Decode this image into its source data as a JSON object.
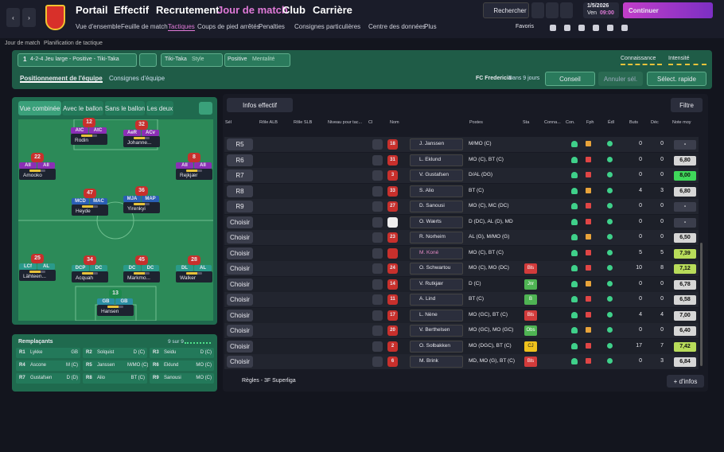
{
  "header": {
    "nav": [
      "Portail",
      "Effectif",
      "Recrutement",
      "Jour de match",
      "Club",
      "Carrière"
    ],
    "subnav": [
      "Vue d'ensemble",
      "Feuille de match",
      "Tactiques",
      "Coups de pied arrêtés",
      "Penalties",
      "Consignes particulières",
      "Centre des données",
      "Plus"
    ],
    "search": "Rechercher",
    "date": "1/5/2026",
    "day": "Ven",
    "time": "09:00",
    "continue": "Continuer",
    "favorites": "Favoris"
  },
  "breadcrumb": [
    "Jour de match",
    "Planification de tactique"
  ],
  "tactic": {
    "slot": "1",
    "formation": "4-2-4 Jeu large - Positive - Tiki-Taka",
    "style_value": "Tiki-Taka",
    "style_label": "Style",
    "mentality_value": "Positive",
    "mentality_label": "Mentalité",
    "familiarity": "Connaissance",
    "intensity": "Intensité",
    "tabs": [
      "Positionnement de l'équipe",
      "Consignes d'équipe"
    ],
    "opponent": "FC Fredericia",
    "when": "Dans 9 jours",
    "advice": "Conseil",
    "undo": "Annuler sél.",
    "quick": "Sélect. rapide"
  },
  "pitch": {
    "tabs": [
      "Vue combinée",
      "Avec le ballon",
      "Sans le ballon",
      "Les deux"
    ],
    "players": [
      {
        "number": 12,
        "roles": [
          "AtC",
          "AtC"
        ],
        "name": "Rodin"
      },
      {
        "number": 32,
        "roles": [
          "AeR",
          "ACv"
        ],
        "name": "Johanne..."
      },
      {
        "number": 22,
        "roles": [
          "AlI",
          "AlI"
        ],
        "name": "Amooko"
      },
      {
        "number": 8,
        "roles": [
          "AlI",
          "AlI"
        ],
        "name": "Rejkjær"
      },
      {
        "number": 47,
        "roles": [
          "MCD",
          "MAC"
        ],
        "name": "Heyde"
      },
      {
        "number": 36,
        "roles": [
          "MJA",
          "MAP"
        ],
        "name": "Yirenkyi"
      },
      {
        "number": 25,
        "roles": [
          "LCf",
          "AL"
        ],
        "name": "Lähteen..."
      },
      {
        "number": 34,
        "roles": [
          "DCP",
          "DC"
        ],
        "name": "Acquah"
      },
      {
        "number": 45,
        "roles": [
          "DC",
          "DC"
        ],
        "name": "Markmo..."
      },
      {
        "number": 28,
        "roles": [
          "DL",
          "AL"
        ],
        "name": "Walker"
      },
      {
        "number": 13,
        "roles": [
          "GB",
          "GB"
        ],
        "name": "Hansen"
      }
    ]
  },
  "subs": {
    "title": "Remplaçants",
    "count": "9 sur 9",
    "rows": [
      [
        "R1",
        "Lykke",
        "GB"
      ],
      [
        "R2",
        "Solquist",
        "D (C)"
      ],
      [
        "R3",
        "Seidu",
        "D (C)"
      ],
      [
        "R4",
        "Ascone",
        "M (C)"
      ],
      [
        "R5",
        "Janssen",
        "M/MO (C)"
      ],
      [
        "R6",
        "Eklund",
        "MO (C)"
      ],
      [
        "R7",
        "Gustafsen",
        "D (D)"
      ],
      [
        "R8",
        "Alio",
        "BT (C)"
      ],
      [
        "R9",
        "Sanousi",
        "MO (C)"
      ]
    ]
  },
  "table": {
    "squad_button": "Infos effectif",
    "filter": "Filtre",
    "columns": [
      "Sél",
      "Rôle ALB",
      "Rôle SLB",
      "Niveau pour tac...",
      "Cl",
      "Nom",
      "Postes",
      "Sta",
      "Conna...",
      "Con.",
      "Fph",
      "Édl",
      "Buts",
      "Déc",
      "Note moy"
    ],
    "rows": [
      {
        "sel": "R5",
        "shirt": 18,
        "name": "J. Janssen",
        "postes": "M/MO (C)",
        "buts": 0,
        "dec": 0,
        "note": "-"
      },
      {
        "sel": "R6",
        "shirt": 31,
        "name": "L. Eklund",
        "postes": "MO (C), BT (C)",
        "buts": 0,
        "dec": 0,
        "note": "6,80"
      },
      {
        "sel": "R7",
        "shirt": 3,
        "name": "V. Gustafsen",
        "postes": "D/AL (DG)",
        "buts": 0,
        "dec": 0,
        "note": "8,00"
      },
      {
        "sel": "R8",
        "shirt": 33,
        "name": "S. Alio",
        "postes": "BT (C)",
        "buts": 4,
        "dec": 3,
        "note": "6,80"
      },
      {
        "sel": "R9",
        "shirt": 27,
        "name": "D. Sanousi",
        "postes": "MO (C), MC (DC)",
        "buts": 0,
        "dec": 0,
        "note": "-"
      },
      {
        "sel": "Choisir",
        "name": "O. Wærts",
        "postes": "D (DC), AL (D), MD",
        "buts": 0,
        "dec": 0,
        "note": "-"
      },
      {
        "sel": "Choisir",
        "shirt": 23,
        "name": "R. Norheim",
        "postes": "AL (G), M/MO (G)",
        "buts": 0,
        "dec": 0,
        "note": "6,50"
      },
      {
        "sel": "Choisir",
        "name": "M. Koné",
        "name_color": "#e48bc4",
        "postes": "MO (C), BT (C)",
        "buts": 5,
        "dec": 5,
        "note": "7,39"
      },
      {
        "sel": "Choisir",
        "shirt": 24,
        "name": "O. Schwartou",
        "postes": "MO (C), MO (DC)",
        "sta": {
          "label": "Bls",
          "color": "#d23b3b"
        },
        "buts": 10,
        "dec": 8,
        "note": "7,12"
      },
      {
        "sel": "Choisir",
        "shirt": 14,
        "name": "V. Rutkjær",
        "postes": "D (C)",
        "sta": {
          "label": "Jnr",
          "color": "#4fb453"
        },
        "buts": 0,
        "dec": 0,
        "note": "6,78"
      },
      {
        "sel": "Choisir",
        "shirt": 11,
        "name": "A. Lind",
        "postes": "BT (C)",
        "sta": {
          "label": "B",
          "color": "#4fb453"
        },
        "buts": 0,
        "dec": 0,
        "note": "6,58"
      },
      {
        "sel": "Choisir",
        "shirt": 17,
        "name": "L. Nène",
        "postes": "MO (GC), BT (C)",
        "sta": {
          "label": "Bls",
          "color": "#d23b3b"
        },
        "buts": 4,
        "dec": 4,
        "note": "7,00"
      },
      {
        "sel": "Choisir",
        "shirt": 20,
        "name": "V. Berthelsen",
        "postes": "MO (GC), MO (GC)",
        "sta": {
          "label": "Obs",
          "color": "#4fb453"
        },
        "buts": 0,
        "dec": 0,
        "note": "6,40"
      },
      {
        "sel": "Choisir",
        "shirt": 2,
        "name": "O. Solbakken",
        "postes": "MO (DGC), BT (C)",
        "sta": {
          "label": "CJ",
          "color": "#efc21c"
        },
        "buts": 17,
        "dec": 7,
        "note": "7,42"
      },
      {
        "sel": "Choisir",
        "shirt": 6,
        "name": "M. Brink",
        "postes": "MD, MO (G), BT (C)",
        "sta": {
          "label": "Bls",
          "color": "#d23b3b"
        },
        "buts": 0,
        "dec": 3,
        "note": "6,84"
      }
    ],
    "rules": "Règles - 3F Superliga",
    "more": "+ d'infos"
  }
}
